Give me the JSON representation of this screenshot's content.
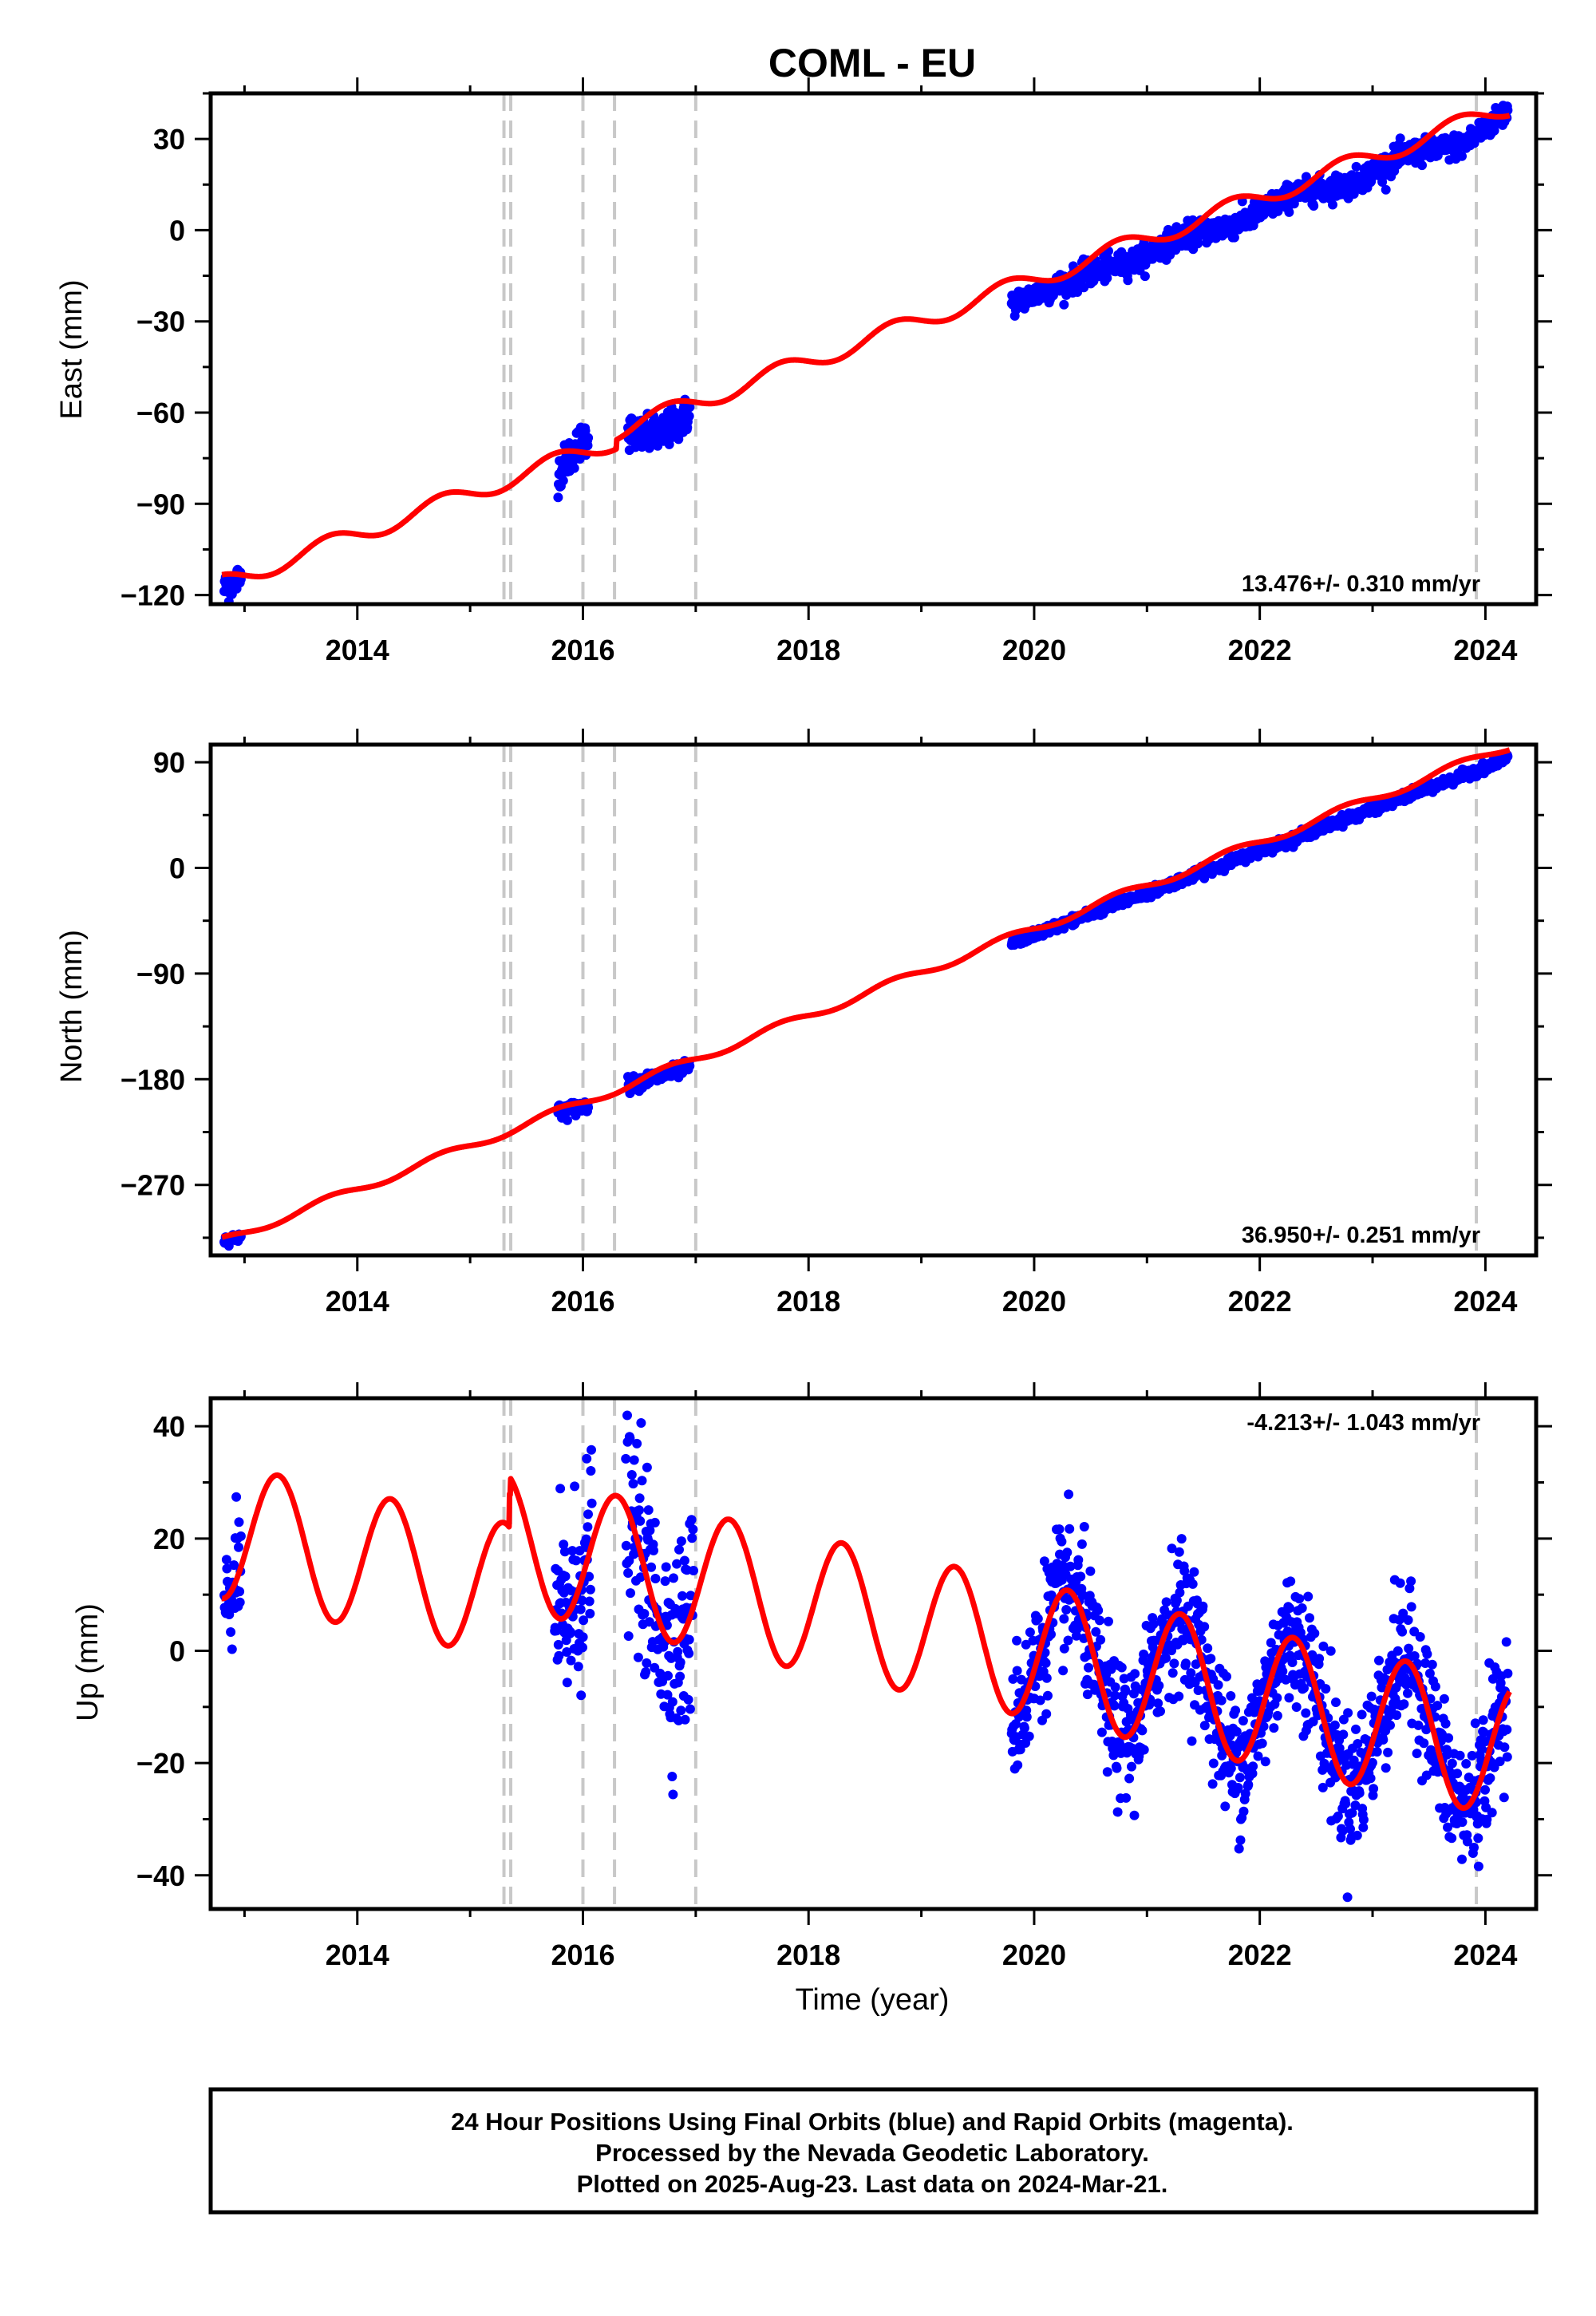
{
  "title": "COML - EU",
  "colors": {
    "observed": "#0000ff",
    "model": "#ff0000",
    "event_lines": "#c8c8c8",
    "frame": "#000000"
  },
  "xlabel": "Time (year)",
  "footer": {
    "line1": "24 Hour Positions Using Final Orbits (blue) and Rapid Orbits (magenta).",
    "line2": "Processed by the Nevada Geodetic Laboratory.",
    "line3": "Plotted on 2025-Aug-23. Last data on 2024-Mar-21."
  },
  "chart_data": [
    {
      "type": "scatter",
      "component": "east",
      "ylabel": "East (mm)",
      "rate_label": "13.476+/- 0.310 mm/yr",
      "rate_position": "bottom-right",
      "xlim": [
        2012.7,
        2024.45
      ],
      "ylim": [
        -123,
        45
      ],
      "xticks": [
        2014,
        2016,
        2018,
        2020,
        2022,
        2024
      ],
      "yticks": [
        30,
        0,
        -30,
        -60,
        -90,
        -120
      ],
      "grid": false,
      "event_lines_x": [
        2015.3,
        2015.36,
        2016.0,
        2016.28,
        2017.0,
        2023.92
      ],
      "observed_segments": [
        {
          "x": [
            2012.82,
            2012.9,
            2012.97
          ],
          "y": [
            -118,
            -116,
            -114
          ],
          "scatter_mm": 2.5
        },
        {
          "x": [
            2015.78,
            2015.85,
            2015.95,
            2016.05
          ],
          "y": [
            -80,
            -76,
            -71,
            -67
          ],
          "scatter_mm": 3
        },
        {
          "x": [
            2016.4,
            2016.55,
            2016.7,
            2016.85,
            2016.95
          ],
          "y": [
            -66,
            -68,
            -67,
            -63,
            -60
          ],
          "scatter_mm": 3
        },
        {
          "x": [
            2019.8,
            2020.1,
            2020.5,
            2020.9,
            2021.3,
            2021.8,
            2022.3,
            2022.8,
            2023.3,
            2023.8,
            2024.2
          ],
          "y": [
            -24,
            -20,
            -14,
            -10,
            -2,
            2,
            12,
            15,
            25,
            28,
            39
          ],
          "scatter_mm": 2
        }
      ],
      "model_trend": {
        "x0": 2013.0,
        "y0": -113.5,
        "rate": 13.476
      },
      "model_seasonal": {
        "sin": -3.0,
        "cos": 0.0
      },
      "model_offsets": [
        {
          "x": 2016.3,
          "dy": 3
        }
      ]
    },
    {
      "type": "scatter",
      "component": "north",
      "ylabel": "North (mm)",
      "rate_label": "36.950+/- 0.251 mm/yr",
      "rate_position": "bottom-right",
      "xlim": [
        2012.7,
        2024.45
      ],
      "ylim": [
        -330,
        105
      ],
      "xticks": [
        2014,
        2016,
        2018,
        2020,
        2022,
        2024
      ],
      "yticks": [
        90,
        0,
        -90,
        -180,
        -270
      ],
      "grid": false,
      "event_lines_x": [
        2015.3,
        2015.36,
        2016.0,
        2016.28,
        2017.0,
        2023.92
      ],
      "observed_segments": [
        {
          "x": [
            2012.82,
            2012.97
          ],
          "y": [
            -317,
            -314
          ],
          "scatter_mm": 2
        },
        {
          "x": [
            2015.78,
            2016.05
          ],
          "y": [
            -208,
            -202
          ],
          "scatter_mm": 3
        },
        {
          "x": [
            2016.4,
            2016.95
          ],
          "y": [
            -185,
            -170
          ],
          "scatter_mm": 3
        },
        {
          "x": [
            2019.8,
            2024.2
          ],
          "y": [
            -64,
            93
          ],
          "scatter_mm": 2
        }
      ],
      "model_trend": {
        "x0": 2013.0,
        "y0": -310.5,
        "rate": 36.95
      },
      "model_seasonal": {
        "sin": -3.5,
        "cos": 0.0
      },
      "model_offsets": []
    },
    {
      "type": "scatter",
      "component": "up",
      "ylabel": "Up (mm)",
      "rate_label": "-4.213+/- 1.043 mm/yr",
      "rate_position": "top-right",
      "xlim": [
        2012.7,
        2024.45
      ],
      "ylim": [
        -46,
        45
      ],
      "xticks": [
        2014,
        2016,
        2018,
        2020,
        2022,
        2024
      ],
      "yticks": [
        40,
        20,
        0,
        -20,
        -40
      ],
      "grid": false,
      "event_lines_x": [
        2015.3,
        2015.36,
        2016.0,
        2016.28,
        2017.0,
        2023.92
      ],
      "observed_segments": [
        {
          "x": [
            2012.82,
            2012.97
          ],
          "scatter_mm": 5
        },
        {
          "x": [
            2015.75,
            2016.08
          ],
          "scatter_mm": 9
        },
        {
          "x": [
            2016.38,
            2016.98
          ],
          "scatter_mm": 9
        },
        {
          "x": [
            2019.8,
            2024.2
          ],
          "scatter_mm": 6
        }
      ],
      "model_trend": {
        "x0": 2013.0,
        "y0": 20.5,
        "rate": -4.213
      },
      "model_seasonal": {
        "sin": 11.5,
        "cos": -3.5
      },
      "model_offsets": [
        {
          "x": 2015.35,
          "dy": 6
        },
        {
          "x": 2015.36,
          "dy": 3
        }
      ]
    }
  ]
}
